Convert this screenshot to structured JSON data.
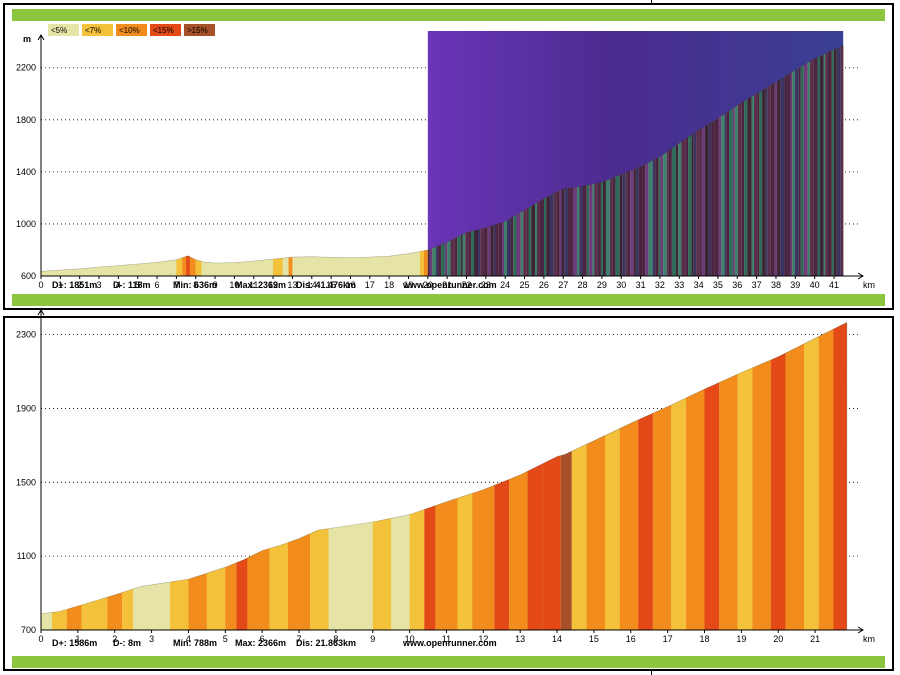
{
  "colors": {
    "lt5": "#e5e4a6",
    "lt7": "#f4c13b",
    "lt10": "#f28c1c",
    "lt15": "#e34a17",
    "gt15": "#a8502a",
    "frame_bar": "#8cc63f",
    "overlay": "#5b2fa3"
  },
  "legend": [
    "<5%",
    "<7%",
    "<10%",
    "<15%",
    ">15%"
  ],
  "chart_data": [
    {
      "type": "area",
      "ylabel": "m",
      "xlabel": "km",
      "yticks": [
        600,
        1000,
        1400,
        1800,
        2200
      ],
      "ylim": [
        600,
        2390
      ],
      "xlim": [
        0,
        42.5
      ],
      "xticks": [
        0,
        1,
        2,
        3,
        4,
        5,
        6,
        7,
        8,
        9,
        10,
        11,
        12,
        13,
        14,
        15,
        16,
        17,
        18,
        19,
        20,
        21,
        22,
        23,
        24,
        25,
        26,
        27,
        28,
        29,
        30,
        31,
        32,
        33,
        34,
        35,
        36,
        37,
        38,
        39,
        40,
        41
      ],
      "profile": [
        [
          0,
          636
        ],
        [
          1,
          645
        ],
        [
          2,
          655
        ],
        [
          3,
          668
        ],
        [
          4,
          680
        ],
        [
          5,
          692
        ],
        [
          6,
          705
        ],
        [
          7,
          725
        ],
        [
          7.6,
          755
        ],
        [
          8,
          725
        ],
        [
          8.5,
          705
        ],
        [
          9,
          700
        ],
        [
          10,
          703
        ],
        [
          11,
          715
        ],
        [
          12,
          730
        ],
        [
          13,
          745
        ],
        [
          14,
          748
        ],
        [
          15,
          744
        ],
        [
          16,
          742
        ],
        [
          17,
          745
        ],
        [
          18,
          752
        ],
        [
          19,
          772
        ],
        [
          20,
          800
        ],
        [
          21,
          860
        ],
        [
          22,
          935
        ],
        [
          23,
          970
        ],
        [
          24,
          1020
        ],
        [
          25,
          1105
        ],
        [
          26,
          1195
        ],
        [
          27,
          1270
        ],
        [
          28,
          1290
        ],
        [
          29,
          1320
        ],
        [
          30,
          1380
        ],
        [
          31,
          1440
        ],
        [
          32,
          1515
        ],
        [
          33,
          1620
        ],
        [
          34,
          1720
        ],
        [
          35,
          1810
        ],
        [
          36,
          1910
        ],
        [
          37,
          2000
        ],
        [
          38,
          2090
        ],
        [
          39,
          2180
        ],
        [
          40,
          2270
        ],
        [
          41,
          2340
        ],
        [
          41.476,
          2369
        ]
      ],
      "grade_segments": [
        [
          0,
          7,
          "lt5"
        ],
        [
          7,
          7.3,
          "lt7"
        ],
        [
          7.3,
          7.5,
          "lt10"
        ],
        [
          7.5,
          7.7,
          "lt15"
        ],
        [
          7.7,
          8,
          "lt10"
        ],
        [
          8,
          8.3,
          "lt7"
        ],
        [
          8.3,
          12,
          "lt5"
        ],
        [
          12,
          12.5,
          "lt7"
        ],
        [
          12.5,
          12.8,
          "lt5"
        ],
        [
          12.8,
          13,
          "lt10"
        ],
        [
          13,
          19.6,
          "lt5"
        ],
        [
          19.6,
          19.8,
          "lt7"
        ],
        [
          19.8,
          20,
          "lt10"
        ],
        [
          20,
          20.2,
          "lt5"
        ]
      ],
      "highlight": {
        "from": 20,
        "to": 41.476
      },
      "stats": {
        "dplus": "D+: 1851m",
        "dminus": "D-: 118m",
        "min": "Min: 636m",
        "max": "Max: 2369m",
        "dis": "Dis: 41.476km",
        "site": "www.openrunner.com"
      }
    },
    {
      "type": "area",
      "xlabel": "km",
      "yticks": [
        700,
        1100,
        1500,
        1900,
        2300
      ],
      "ylim": [
        700,
        2390
      ],
      "xlim": [
        0,
        22.3
      ],
      "xticks": [
        0,
        1,
        2,
        3,
        4,
        5,
        6,
        7,
        8,
        9,
        10,
        11,
        12,
        13,
        14,
        15,
        16,
        17,
        18,
        19,
        20,
        21
      ],
      "profile": [
        [
          0,
          788
        ],
        [
          0.5,
          800
        ],
        [
          1,
          830
        ],
        [
          2,
          890
        ],
        [
          2.7,
          935
        ],
        [
          3,
          945
        ],
        [
          4,
          975
        ],
        [
          5,
          1040
        ],
        [
          5.5,
          1080
        ],
        [
          6,
          1130
        ],
        [
          6.5,
          1160
        ],
        [
          7,
          1195
        ],
        [
          7.5,
          1240
        ],
        [
          8,
          1255
        ],
        [
          9,
          1285
        ],
        [
          10,
          1325
        ],
        [
          11,
          1395
        ],
        [
          12,
          1460
        ],
        [
          13,
          1540
        ],
        [
          14,
          1640
        ],
        [
          14.2,
          1650
        ],
        [
          15,
          1725
        ],
        [
          16,
          1820
        ],
        [
          17,
          1910
        ],
        [
          18,
          2005
        ],
        [
          19,
          2095
        ],
        [
          20,
          2180
        ],
        [
          21,
          2280
        ],
        [
          21.863,
          2366
        ]
      ],
      "grade_segments": [
        [
          0,
          0.3,
          "lt5"
        ],
        [
          0.3,
          0.7,
          "lt7"
        ],
        [
          0.7,
          1.1,
          "lt10"
        ],
        [
          1.1,
          1.8,
          "lt7"
        ],
        [
          1.8,
          2.2,
          "lt10"
        ],
        [
          2.2,
          2.5,
          "lt7"
        ],
        [
          2.5,
          3,
          "lt5"
        ],
        [
          3,
          3.5,
          "lt5"
        ],
        [
          3.5,
          4,
          "lt7"
        ],
        [
          4,
          4.5,
          "lt10"
        ],
        [
          4.5,
          5,
          "lt7"
        ],
        [
          5,
          5.3,
          "lt10"
        ],
        [
          5.3,
          5.6,
          "lt15"
        ],
        [
          5.6,
          6.2,
          "lt10"
        ],
        [
          6.2,
          6.7,
          "lt7"
        ],
        [
          6.7,
          7.3,
          "lt10"
        ],
        [
          7.3,
          7.8,
          "lt7"
        ],
        [
          7.8,
          9,
          "lt5"
        ],
        [
          9,
          9.5,
          "lt7"
        ],
        [
          9.5,
          10,
          "lt5"
        ],
        [
          10,
          10.4,
          "lt7"
        ],
        [
          10.4,
          10.7,
          "lt15"
        ],
        [
          10.7,
          11.3,
          "lt10"
        ],
        [
          11.3,
          11.7,
          "lt7"
        ],
        [
          11.7,
          12.3,
          "lt10"
        ],
        [
          12.3,
          12.7,
          "lt15"
        ],
        [
          12.7,
          13.2,
          "lt10"
        ],
        [
          13.2,
          13.6,
          "lt15"
        ],
        [
          13.6,
          14.1,
          "lt15"
        ],
        [
          14.1,
          14.4,
          "gt15"
        ],
        [
          14.4,
          14.8,
          "lt7"
        ],
        [
          14.8,
          15.3,
          "lt10"
        ],
        [
          15.3,
          15.7,
          "lt7"
        ],
        [
          15.7,
          16.2,
          "lt10"
        ],
        [
          16.2,
          16.6,
          "lt15"
        ],
        [
          16.6,
          17.1,
          "lt10"
        ],
        [
          17.1,
          17.5,
          "lt7"
        ],
        [
          17.5,
          18,
          "lt10"
        ],
        [
          18,
          18.4,
          "lt15"
        ],
        [
          18.4,
          18.9,
          "lt10"
        ],
        [
          18.9,
          19.3,
          "lt7"
        ],
        [
          19.3,
          19.8,
          "lt10"
        ],
        [
          19.8,
          20.2,
          "lt15"
        ],
        [
          20.2,
          20.7,
          "lt10"
        ],
        [
          20.7,
          21.1,
          "lt7"
        ],
        [
          21.1,
          21.5,
          "lt10"
        ],
        [
          21.5,
          21.863,
          "lt15"
        ]
      ],
      "stats": {
        "dplus": "D+: 1586m",
        "dminus": "D-: 8m",
        "min": "Min: 788m",
        "max": "Max: 2366m",
        "dis": "Dis: 21.863km",
        "site": "www.openrunner.com"
      }
    }
  ]
}
